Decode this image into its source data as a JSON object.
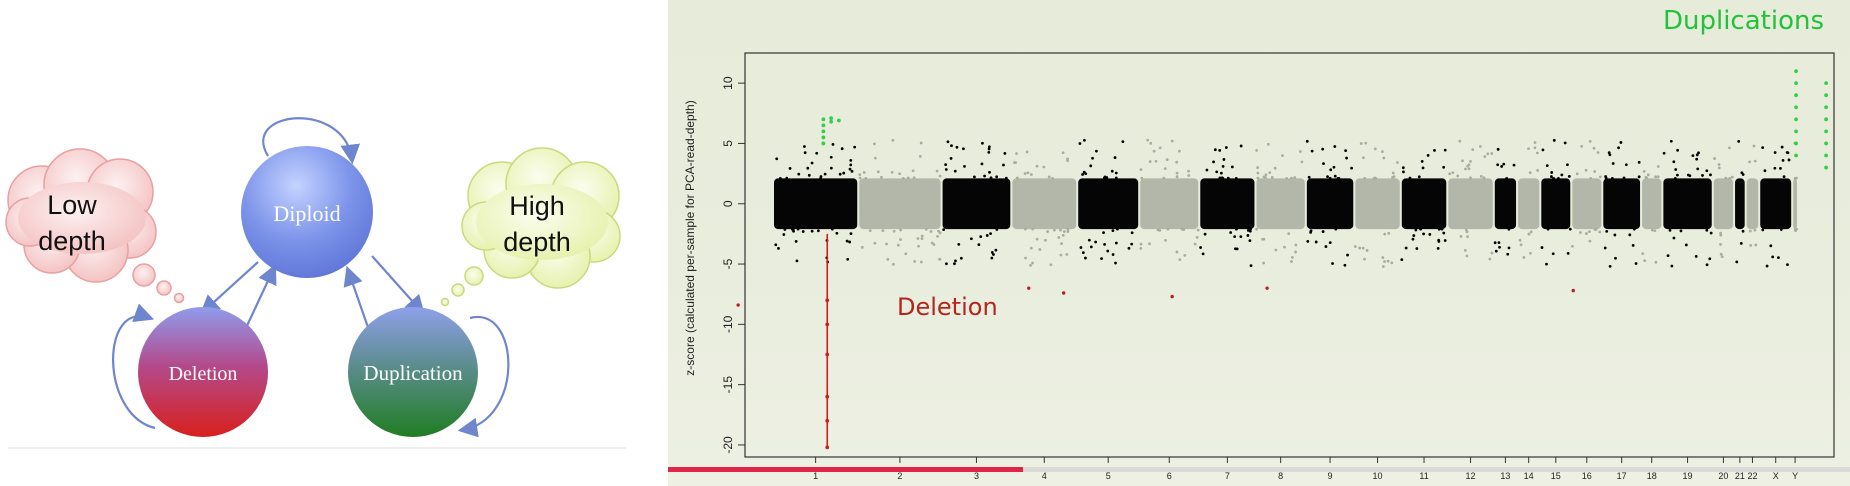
{
  "state_diagram": {
    "states": {
      "diploid": "Diploid",
      "deletion": "Deletion",
      "duplication": "Duplication"
    },
    "clouds": {
      "low": [
        "Low",
        "depth"
      ],
      "high": [
        "High",
        "depth"
      ]
    }
  },
  "annotations": {
    "duplications": "Duplications",
    "deletion": "Deletion"
  },
  "video": {
    "progress": 0.3,
    "progress_color": "#e0244a"
  },
  "chart_data": {
    "type": "scatter",
    "title": "",
    "xlabel": "",
    "ylabel": "z-score (calculated per-sample for PCA-read-depth)",
    "ylim": [
      -21,
      12.5
    ],
    "yticks": [
      10,
      5,
      0,
      -5,
      -10,
      -15,
      -20
    ],
    "grid": false,
    "series": [
      {
        "name": "",
        "color": "#000000"
      },
      {
        "name": "",
        "color": "#aaaaaa"
      }
    ],
    "chromosomes": [
      {
        "label": "1",
        "width": 4.4,
        "shade": "black"
      },
      {
        "label": "2",
        "width": 4.3,
        "shade": "gray"
      },
      {
        "label": "3",
        "width": 3.6,
        "shade": "black"
      },
      {
        "label": "4",
        "width": 3.4,
        "shade": "gray"
      },
      {
        "label": "5",
        "width": 3.2,
        "shade": "black"
      },
      {
        "label": "6",
        "width": 3.1,
        "shade": "gray"
      },
      {
        "label": "7",
        "width": 2.9,
        "shade": "black"
      },
      {
        "label": "8",
        "width": 2.6,
        "shade": "gray"
      },
      {
        "label": "9",
        "width": 2.5,
        "shade": "black"
      },
      {
        "label": "10",
        "width": 2.4,
        "shade": "gray"
      },
      {
        "label": "11",
        "width": 2.4,
        "shade": "black"
      },
      {
        "label": "12",
        "width": 2.4,
        "shade": "gray"
      },
      {
        "label": "13",
        "width": 1.2,
        "shade": "black"
      },
      {
        "label": "14",
        "width": 1.2,
        "shade": "gray"
      },
      {
        "label": "15",
        "width": 1.6,
        "shade": "black"
      },
      {
        "label": "16",
        "width": 1.6,
        "shade": "gray"
      },
      {
        "label": "17",
        "width": 2.0,
        "shade": "black"
      },
      {
        "label": "18",
        "width": 1.1,
        "shade": "gray"
      },
      {
        "label": "19",
        "width": 2.6,
        "shade": "black"
      },
      {
        "label": "20",
        "width": 1.1,
        "shade": "gray"
      },
      {
        "label": "21",
        "width": 0.6,
        "shade": "black"
      },
      {
        "label": "22",
        "width": 0.7,
        "shade": "gray"
      },
      {
        "label": "X",
        "width": 1.7,
        "shade": "black"
      },
      {
        "label": "Y",
        "width": 0.3,
        "shade": "gray"
      }
    ],
    "duplication_events": [
      {
        "x": 2.6,
        "z": [
          5,
          5.5,
          6,
          6.5,
          7
        ]
      },
      {
        "x": 3.0,
        "z": [
          6.8,
          7.1
        ]
      },
      {
        "x": 3.4,
        "z": [
          6.9
        ]
      },
      {
        "x": 52.8,
        "z": [
          4,
          5,
          6,
          7,
          8,
          9,
          10,
          11
        ]
      },
      {
        "x": 54.35,
        "z": [
          3,
          4,
          5,
          6,
          7,
          8,
          9,
          10
        ]
      }
    ],
    "deletion_events": [
      {
        "x": 2.8,
        "z_min": -20.2,
        "z_max": -2.5
      },
      {
        "x": -1.8,
        "z_min": -8.4,
        "z_max": -8.4
      },
      {
        "x": 13.2,
        "z_min": -7.0,
        "z_max": -7.0
      },
      {
        "x": 15.0,
        "z_min": -7.4,
        "z_max": -7.4
      },
      {
        "x": 20.6,
        "z_min": -7.7,
        "z_max": -7.7
      },
      {
        "x": 25.5,
        "z_min": -7.0,
        "z_max": -7.0
      },
      {
        "x": 41.3,
        "z_min": -7.2,
        "z_max": -7.2
      }
    ]
  }
}
